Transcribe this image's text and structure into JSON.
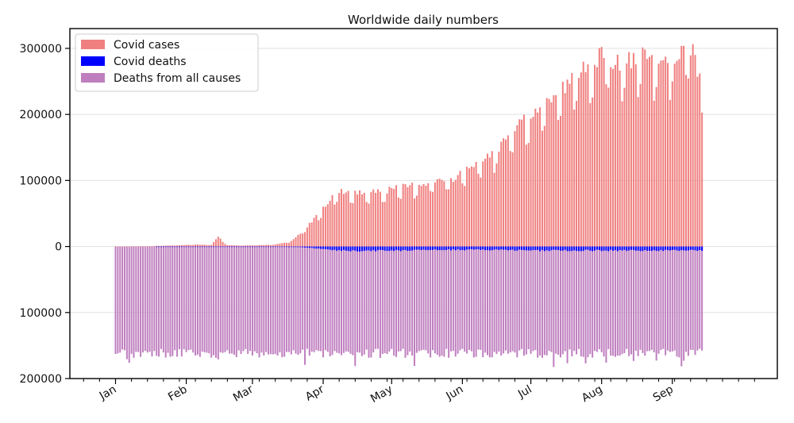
{
  "chart_data": {
    "type": "bar",
    "title": "Worldwide daily numbers",
    "xlabel": "",
    "ylabel": "",
    "ylim": [
      -200000,
      330000
    ],
    "y_ticks": [
      {
        "value": 300000,
        "label": "300000"
      },
      {
        "value": 200000,
        "label": "200000"
      },
      {
        "value": 100000,
        "label": "100000"
      },
      {
        "value": 0,
        "label": "0"
      },
      {
        "value": -100000,
        "label": "100000"
      },
      {
        "value": -200000,
        "label": "200000"
      }
    ],
    "x_ticks": [
      {
        "day": 0,
        "label": "Jan"
      },
      {
        "day": 31,
        "label": "Feb"
      },
      {
        "day": 60,
        "label": "Mar"
      },
      {
        "day": 91,
        "label": "Apr"
      },
      {
        "day": 121,
        "label": "May"
      },
      {
        "day": 152,
        "label": "Jun"
      },
      {
        "day": 182,
        "label": "Jul"
      },
      {
        "day": 213,
        "label": "Aug"
      },
      {
        "day": 244,
        "label": "Sep"
      }
    ],
    "grid": "horizontal",
    "legend_position": "top-left",
    "stacking": "cases plotted above zero; deaths plotted downward below zero",
    "series": [
      {
        "name": "Covid cases",
        "color": "#f08080",
        "points": [
          [
            0,
            0
          ],
          [
            14,
            500
          ],
          [
            28,
            2000
          ],
          [
            35,
            3000
          ],
          [
            42,
            2500
          ],
          [
            45,
            15000
          ],
          [
            49,
            2000
          ],
          [
            56,
            1500
          ],
          [
            63,
            2000
          ],
          [
            70,
            3000
          ],
          [
            77,
            8000
          ],
          [
            84,
            30000
          ],
          [
            91,
            60000
          ],
          [
            98,
            85000
          ],
          [
            105,
            80000
          ],
          [
            112,
            85000
          ],
          [
            119,
            85000
          ],
          [
            126,
            90000
          ],
          [
            133,
            95000
          ],
          [
            140,
            100000
          ],
          [
            147,
            100000
          ],
          [
            154,
            120000
          ],
          [
            161,
            130000
          ],
          [
            168,
            150000
          ],
          [
            175,
            175000
          ],
          [
            182,
            200000
          ],
          [
            189,
            220000
          ],
          [
            196,
            240000
          ],
          [
            203,
            260000
          ],
          [
            210,
            290000
          ],
          [
            217,
            280000
          ],
          [
            224,
            280000
          ],
          [
            231,
            285000
          ],
          [
            238,
            280000
          ],
          [
            245,
            290000
          ],
          [
            252,
            305000
          ],
          [
            257,
            245000
          ]
        ]
      },
      {
        "name": "Covid deaths",
        "color": "#0000ff",
        "points": [
          [
            0,
            0
          ],
          [
            70,
            200
          ],
          [
            84,
            1500
          ],
          [
            91,
            4000
          ],
          [
            98,
            6000
          ],
          [
            105,
            7000
          ],
          [
            112,
            6500
          ],
          [
            126,
            6000
          ],
          [
            140,
            5000
          ],
          [
            154,
            5000
          ],
          [
            168,
            5000
          ],
          [
            182,
            6000
          ],
          [
            196,
            6000
          ],
          [
            210,
            6000
          ],
          [
            224,
            6000
          ],
          [
            238,
            6000
          ],
          [
            252,
            6000
          ],
          [
            257,
            5500
          ]
        ]
      },
      {
        "name": "Deaths from all causes",
        "color": "#bf7fbf",
        "points": [
          [
            0,
            160000
          ],
          [
            257,
            160000
          ]
        ],
        "range": [
          155000,
          180000
        ]
      }
    ]
  }
}
